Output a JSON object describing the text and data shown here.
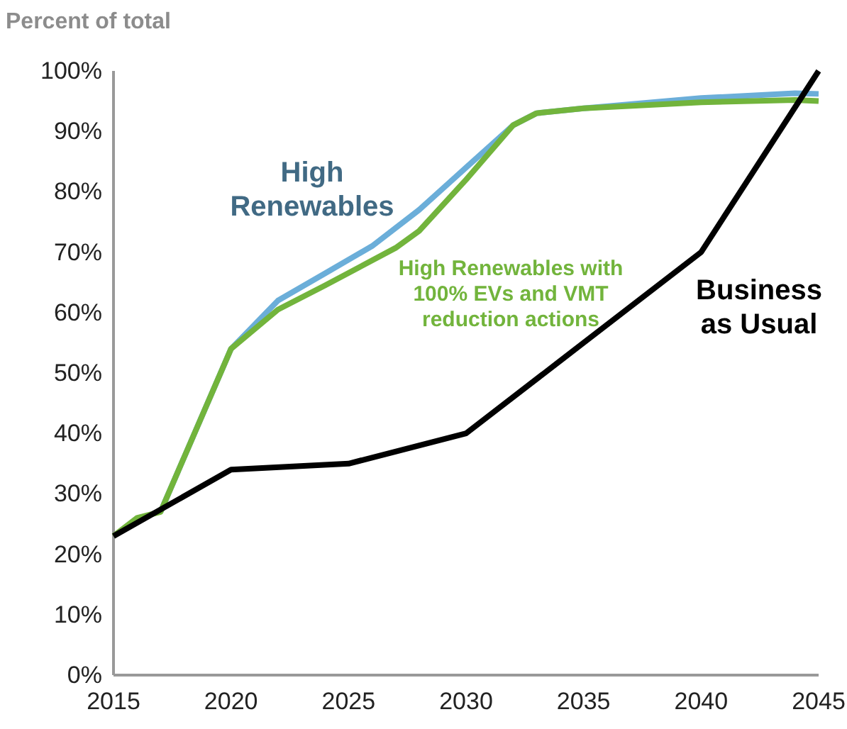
{
  "chart_data": {
    "type": "line",
    "ylabel": "Percent of total",
    "xlim": [
      2015,
      2045
    ],
    "xticks": [
      2015,
      2020,
      2025,
      2030,
      2035,
      2040,
      2045
    ],
    "ylim": [
      0,
      100
    ],
    "yticks": [
      {
        "value": 0,
        "label": "0%"
      },
      {
        "value": 10,
        "label": "10%"
      },
      {
        "value": 20,
        "label": "20%"
      },
      {
        "value": 30,
        "label": "30%"
      },
      {
        "value": 40,
        "label": "40%"
      },
      {
        "value": 50,
        "label": "50%"
      },
      {
        "value": 60,
        "label": "60%"
      },
      {
        "value": 70,
        "label": "70%"
      },
      {
        "value": 80,
        "label": "80%"
      },
      {
        "value": 90,
        "label": "90%"
      },
      {
        "value": 100,
        "label": "100%"
      }
    ],
    "grid": false,
    "legend": false,
    "series": [
      {
        "name": "High Renewables",
        "color": "#6baed9",
        "x": [
          2017,
          2020,
          2022,
          2024,
          2026,
          2028,
          2030,
          2032,
          2033,
          2035,
          2040,
          2044,
          2045
        ],
        "values": [
          27,
          54,
          62,
          66.5,
          71,
          77,
          84,
          91,
          93,
          93.8,
          95.5,
          96.3,
          96.2
        ]
      },
      {
        "name": "High Renewables with 100% EVs and VMT reduction actions",
        "color": "#72b43c",
        "x": [
          2015,
          2016,
          2017,
          2020,
          2022,
          2024,
          2027,
          2028,
          2030,
          2032,
          2033,
          2035,
          2040,
          2044,
          2045
        ],
        "values": [
          23,
          26,
          27,
          54,
          60.5,
          64.5,
          70.7,
          73.5,
          82,
          91,
          93,
          93.8,
          94.8,
          95.2,
          95
        ]
      },
      {
        "name": "Business as Usual",
        "color": "#000000",
        "x": [
          2015,
          2020,
          2025,
          2030,
          2035,
          2040,
          2045
        ],
        "values": [
          23,
          34,
          35,
          40,
          55,
          70,
          100
        ]
      }
    ]
  }
}
